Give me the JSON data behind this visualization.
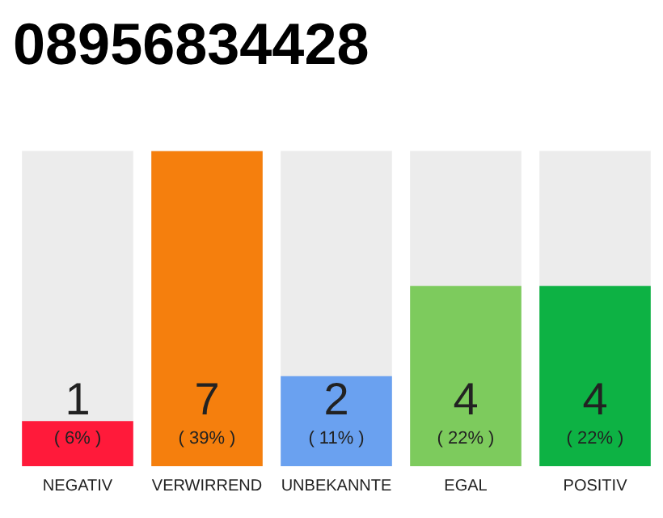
{
  "chart_data": {
    "type": "bar",
    "title": "08956834428",
    "categories": [
      "NEGATIV",
      "VERWIRREND",
      "UNBEKANNTE",
      "EGAL",
      "POSITIV"
    ],
    "values": [
      1,
      7,
      2,
      4,
      4
    ],
    "colors": [
      "#ff1a3a",
      "#f57f0d",
      "#6aa1f0",
      "#7dcb5d",
      "#0db244"
    ],
    "ylim": [
      0,
      7
    ],
    "data_labels": true,
    "grid": false,
    "legend": false,
    "annotations": [
      "( 6% )",
      "( 39% )",
      "( 11% )",
      "( 22% )",
      "( 22% )"
    ]
  }
}
